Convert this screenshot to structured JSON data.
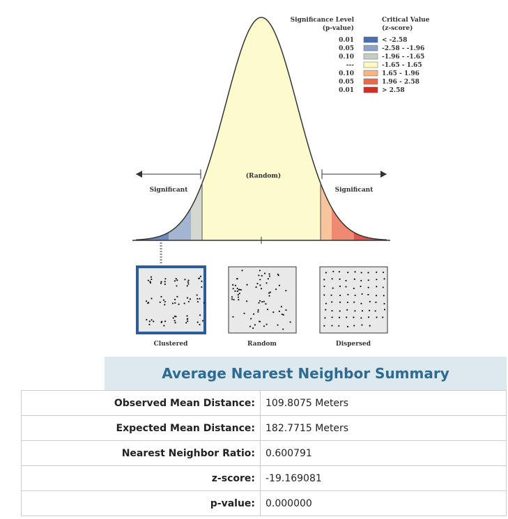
{
  "legend": {
    "significance_header": [
      "Significance Level",
      "(p-value)"
    ],
    "critical_header": [
      "Critical Value",
      "(z-score)"
    ],
    "rows": [
      {
        "p": "0.01",
        "z": "< -2.58",
        "color": "#4a6fb0"
      },
      {
        "p": "0.05",
        "z": "-2.58 - -1.96",
        "color": "#8da2c6"
      },
      {
        "p": "0.10",
        "z": "-1.96 - -1.65",
        "color": "#c8cdc3"
      },
      {
        "p": "---",
        "z": "-1.65 - 1.65",
        "color": "#fdfac0"
      },
      {
        "p": "0.10",
        "z": "1.65 - 1.96",
        "color": "#f6b583"
      },
      {
        "p": "0.05",
        "z": "1.96 - 2.58",
        "color": "#ec6b4f"
      },
      {
        "p": "0.01",
        "z": "> 2.58",
        "color": "#d62c22"
      }
    ]
  },
  "curve_labels": {
    "left": "Significant",
    "center": "(Random)",
    "right": "Significant"
  },
  "patterns": [
    "Clustered",
    "Random",
    "Dispersed"
  ],
  "summary": {
    "title": "Average Nearest Neighbor Summary",
    "rows": [
      [
        "Observed Mean Distance:",
        "109.8075 Meters"
      ],
      [
        "Expected Mean Distance:",
        "182.7715 Meters"
      ],
      [
        "Nearest Neighbor Ratio:",
        "0.600791"
      ],
      [
        "z-score:",
        "-19.169081"
      ],
      [
        "p-value:",
        "0.000000"
      ]
    ]
  }
}
